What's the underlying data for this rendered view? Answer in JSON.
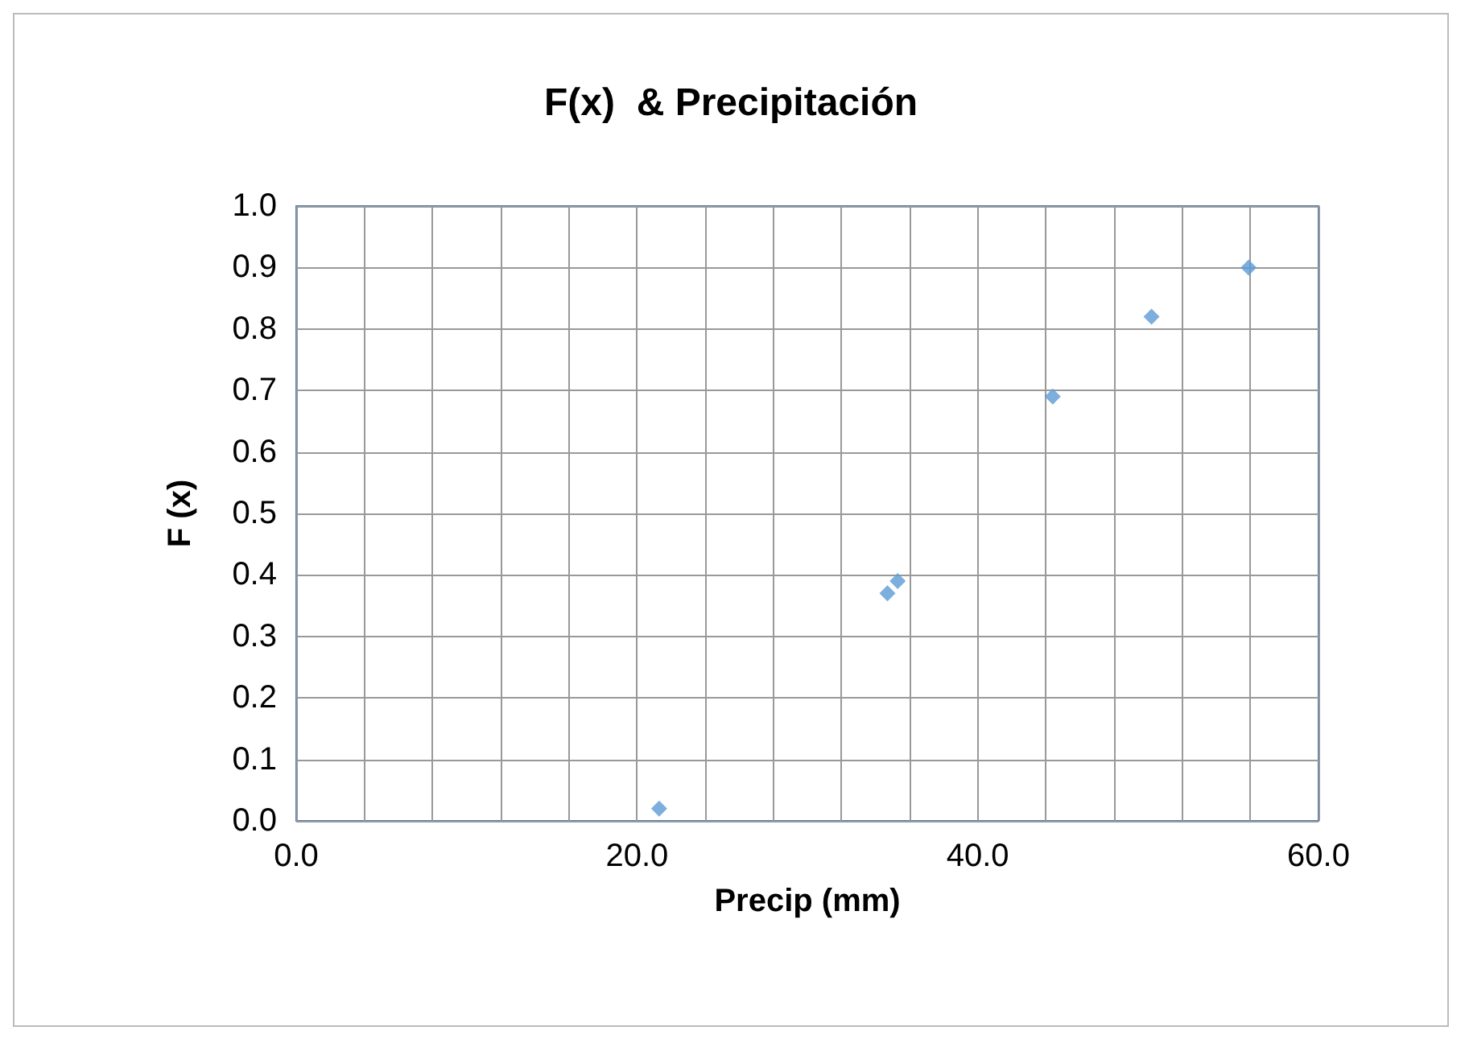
{
  "chart_data": {
    "type": "scatter",
    "title": "F(x)  & Precipitación",
    "xlabel": "Precip (mm)",
    "ylabel": "F (x)",
    "x": [
      21.3,
      34.7,
      35.3,
      44.4,
      50.2,
      55.9
    ],
    "series": [
      {
        "color": "#5b9bd5",
        "values": [
          0.02,
          0.37,
          0.39,
          0.69,
          0.82,
          0.9
        ]
      }
    ],
    "xlim": [
      0,
      60
    ],
    "xticks": [
      {
        "value": 0,
        "label": "0.0"
      },
      {
        "value": 4,
        "label": null
      },
      {
        "value": 8,
        "label": null
      },
      {
        "value": 12,
        "label": null
      },
      {
        "value": 16,
        "label": null
      },
      {
        "value": 20,
        "label": "20.0"
      },
      {
        "value": 24,
        "label": null
      },
      {
        "value": 28,
        "label": null
      },
      {
        "value": 32,
        "label": null
      },
      {
        "value": 36,
        "label": null
      },
      {
        "value": 40,
        "label": "40.0"
      },
      {
        "value": 44,
        "label": null
      },
      {
        "value": 48,
        "label": null
      },
      {
        "value": 52,
        "label": null
      },
      {
        "value": 56,
        "label": null
      },
      {
        "value": 60,
        "label": "60.0"
      }
    ],
    "ylim": [
      0,
      1
    ],
    "yticks": [
      {
        "value": 0,
        "label": "0.0"
      },
      {
        "value": 0.1,
        "label": "0.1"
      },
      {
        "value": 0.2,
        "label": "0.2"
      },
      {
        "value": 0.3,
        "label": "0.3"
      },
      {
        "value": 0.4,
        "label": "0.4"
      },
      {
        "value": 0.5,
        "label": "0.5"
      },
      {
        "value": 0.6,
        "label": "0.6"
      },
      {
        "value": 0.7,
        "label": "0.7"
      },
      {
        "value": 0.8,
        "label": "0.8"
      },
      {
        "value": 0.9,
        "label": "0.9"
      },
      {
        "value": 1,
        "label": "1.0"
      }
    ],
    "grid": true,
    "marker": "diamond"
  }
}
